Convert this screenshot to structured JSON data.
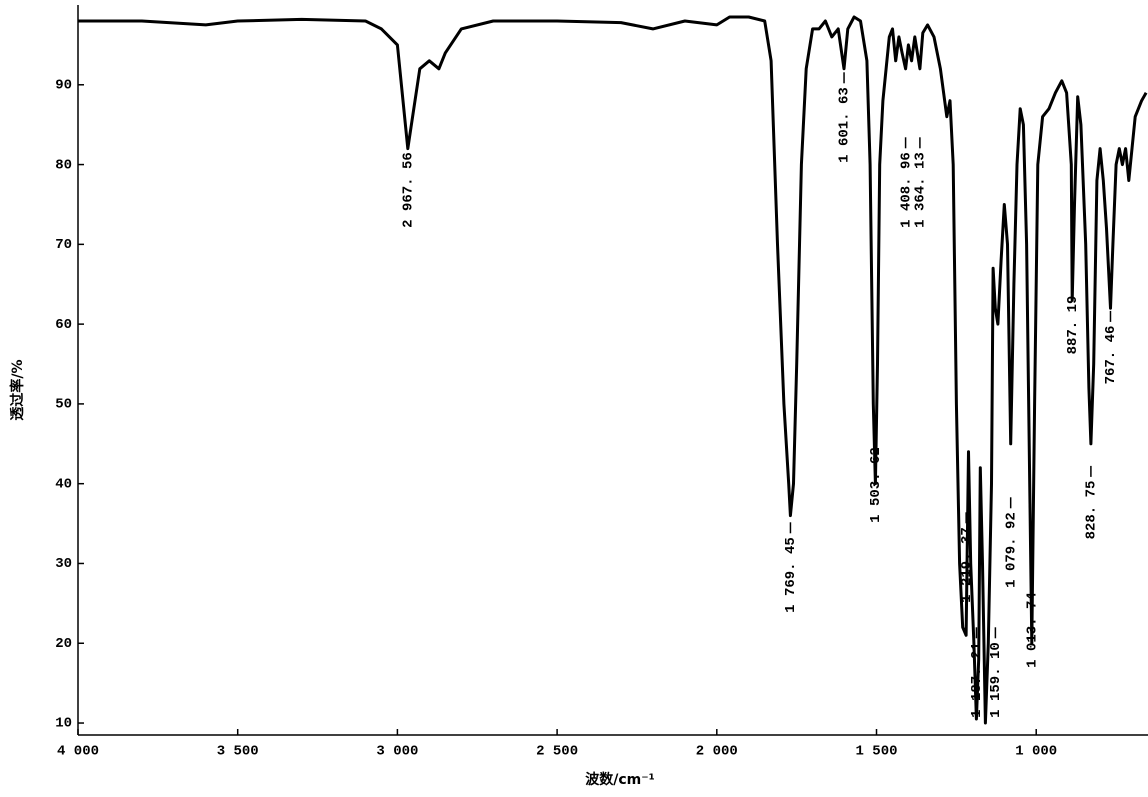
{
  "chart_data": {
    "type": "line",
    "xlabel": "波数/cm⁻¹",
    "ylabel": "透过率/%",
    "xlim": [
      4000,
      650
    ],
    "ylim": [
      8.5,
      100
    ],
    "xticks": [
      {
        "value": 4000,
        "label": "4 000"
      },
      {
        "value": 3500,
        "label": "3 500"
      },
      {
        "value": 3000,
        "label": "3 000"
      },
      {
        "value": 2500,
        "label": "2 500"
      },
      {
        "value": 2000,
        "label": "2 000"
      },
      {
        "value": 1500,
        "label": "1 500"
      },
      {
        "value": 1000,
        "label": "1 000"
      }
    ],
    "yticks": [
      10,
      20,
      30,
      40,
      50,
      60,
      70,
      80,
      90
    ],
    "color": "#000000",
    "x": [
      4000,
      3800,
      3600,
      3500,
      3300,
      3100,
      3050,
      3000,
      2967.56,
      2930,
      2900,
      2870,
      2850,
      2800,
      2700,
      2500,
      2300,
      2200,
      2100,
      2000,
      1960,
      1900,
      1850,
      1830,
      1810,
      1790,
      1775,
      1769.45,
      1760,
      1750,
      1735,
      1720,
      1700,
      1680,
      1660,
      1640,
      1620,
      1601.63,
      1590,
      1570,
      1550,
      1530,
      1520,
      1510,
      1503.62,
      1497,
      1490,
      1480,
      1470,
      1460,
      1450,
      1440,
      1430,
      1420,
      1408.96,
      1400,
      1390,
      1380,
      1364.13,
      1355,
      1340,
      1320,
      1300,
      1280,
      1270,
      1260,
      1250,
      1240,
      1230,
      1219.37,
      1212,
      1205,
      1195,
      1187.21,
      1180,
      1175,
      1168,
      1159.1,
      1150,
      1140,
      1135,
      1128,
      1120,
      1110,
      1100,
      1090,
      1079.92,
      1070,
      1060,
      1050,
      1040,
      1030,
      1013.74,
      1005,
      995,
      980,
      960,
      940,
      920,
      905,
      890,
      887.19,
      880,
      870,
      860,
      845,
      835,
      828.75,
      820,
      810,
      800,
      790,
      780,
      767.46,
      760,
      750,
      740,
      730,
      720,
      710,
      700,
      690,
      670,
      656
    ],
    "values": [
      98,
      98,
      97.5,
      98,
      98.2,
      98,
      97,
      95,
      82,
      92,
      93,
      92,
      94,
      97,
      98,
      98,
      97.8,
      97,
      98,
      97.5,
      98.5,
      98.5,
      98,
      93,
      70,
      50,
      40,
      36,
      40,
      55,
      80,
      92,
      97,
      97,
      98,
      96,
      97,
      92,
      97,
      98.5,
      98,
      93,
      80,
      50,
      40,
      55,
      80,
      88,
      92,
      96,
      97,
      93,
      96,
      94,
      92,
      95,
      93,
      96,
      92,
      96.5,
      97.5,
      96,
      92,
      86,
      88,
      80,
      50,
      30,
      22,
      21,
      44,
      30,
      20,
      10.5,
      18,
      42,
      30,
      10,
      20,
      40,
      67,
      62,
      60,
      68,
      75,
      70,
      45,
      65,
      80,
      87,
      85,
      70,
      20,
      50,
      80,
      86,
      87,
      89,
      90.5,
      89,
      80,
      63,
      75,
      88.5,
      85,
      70,
      52,
      45,
      55,
      78,
      82,
      78,
      72,
      62,
      70,
      80,
      82,
      80,
      82,
      78,
      82,
      86,
      88,
      89
    ],
    "peaks": [
      {
        "x": 2967.56,
        "label": "2 967. 56"
      },
      {
        "x": 1769.45,
        "label": "1 769. 45"
      },
      {
        "x": 1601.63,
        "label": "1 601. 63"
      },
      {
        "x": 1503.62,
        "label": "1 503. 62"
      },
      {
        "x": 1408.96,
        "label": "1 408. 96"
      },
      {
        "x": 1364.13,
        "label": "1 364. 13"
      },
      {
        "x": 1219.37,
        "label": "1 219. 37"
      },
      {
        "x": 1187.21,
        "label": "1 187. 21"
      },
      {
        "x": 1159.1,
        "label": "1 159. 10"
      },
      {
        "x": 1079.92,
        "label": "1 079. 92"
      },
      {
        "x": 1013.74,
        "label": "1 013. 74"
      },
      {
        "x": 887.19,
        "label": "887. 19"
      },
      {
        "x": 828.75,
        "label": "828. 75"
      },
      {
        "x": 767.46,
        "label": "767. 46"
      }
    ]
  }
}
